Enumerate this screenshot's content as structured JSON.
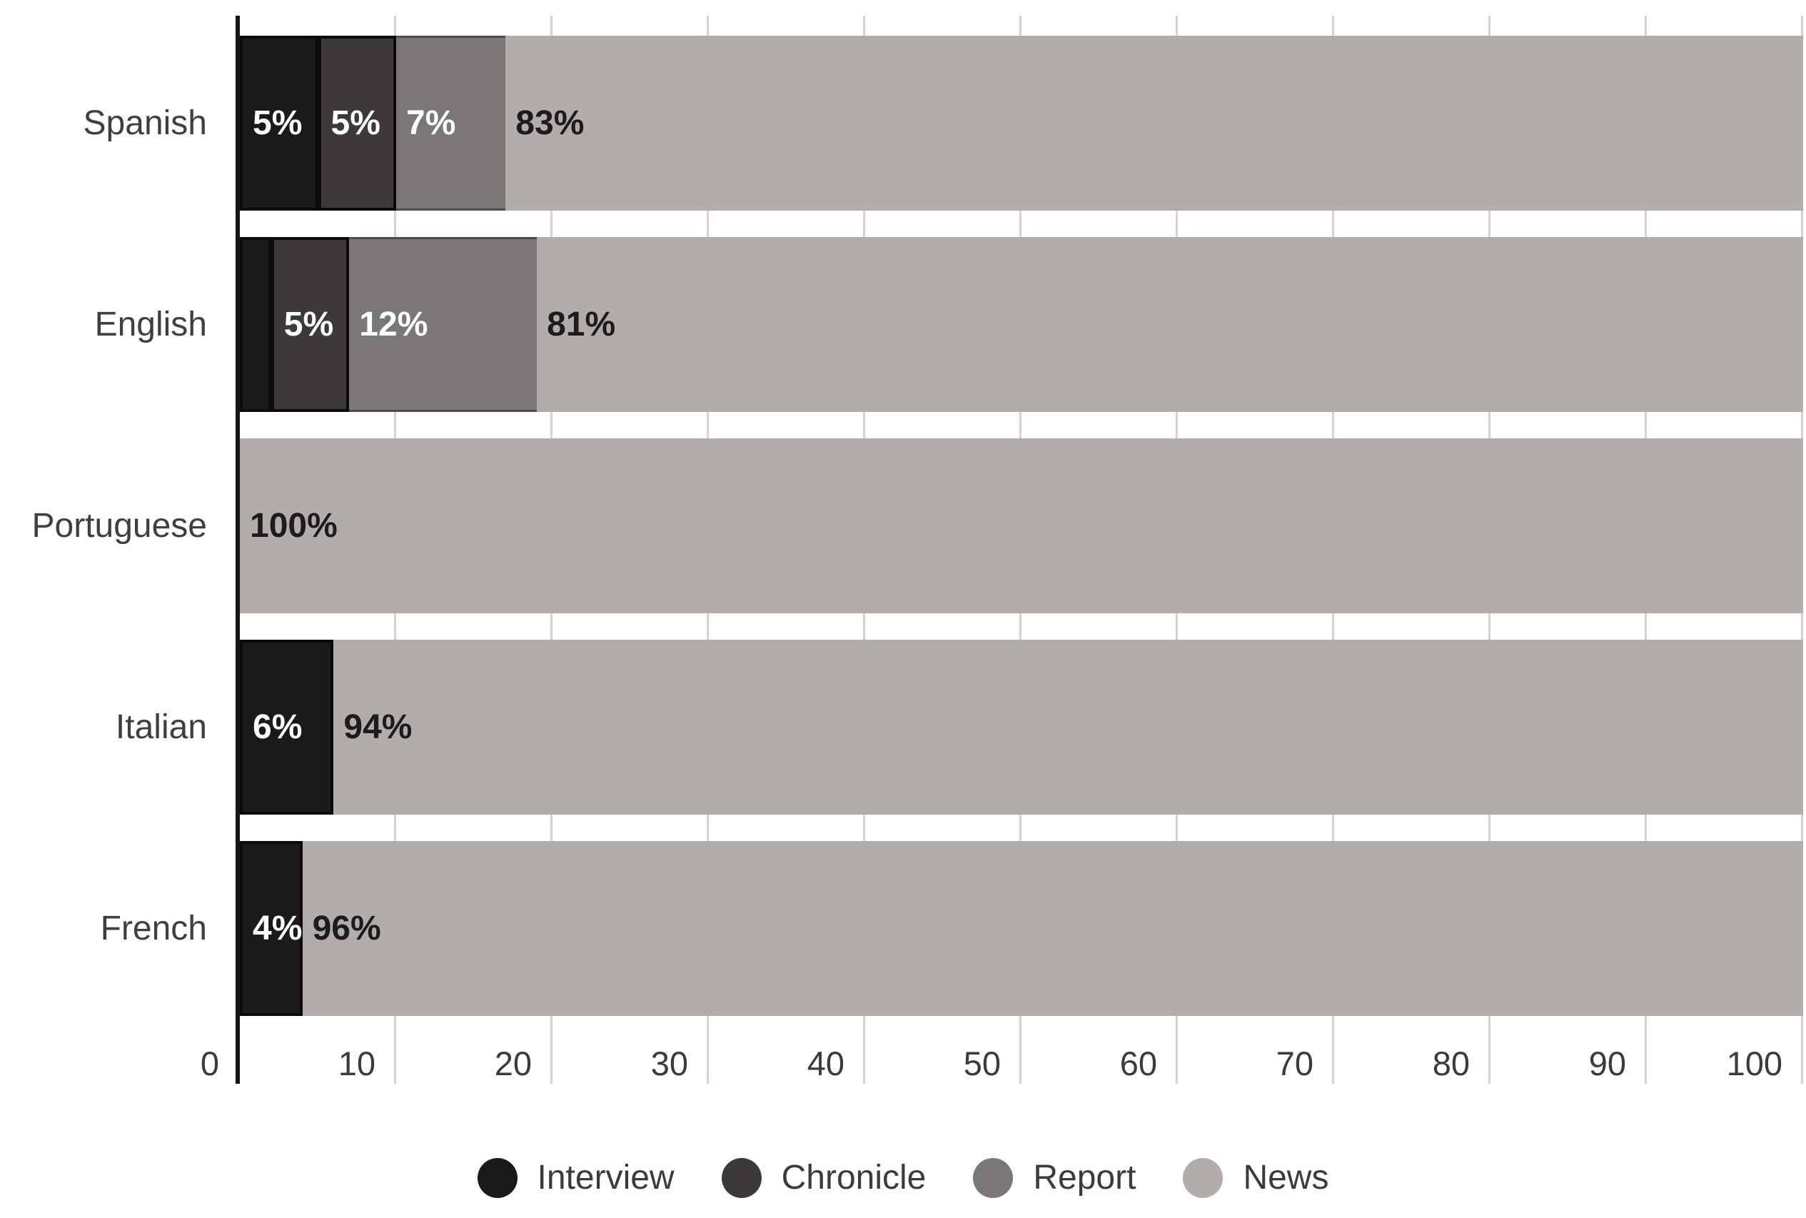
{
  "chart_data": {
    "type": "bar",
    "orientation": "horizontal",
    "stacked": true,
    "title": "",
    "categories": [
      "Spanish",
      "English",
      "Portuguese",
      "Italian",
      "French"
    ],
    "series": [
      {
        "name": "Interview",
        "color": "#1b191b",
        "label_color": "#ffffff",
        "values": [
          5,
          2,
          0,
          6,
          4
        ]
      },
      {
        "name": "Chronicle",
        "color": "#3d383b",
        "label_color": "#ffffff",
        "values": [
          5,
          5,
          0,
          0,
          0
        ]
      },
      {
        "name": "Report",
        "color": "#7b7678",
        "label_color": "#ffffff",
        "values": [
          7,
          12,
          0,
          0,
          0
        ]
      },
      {
        "name": "News",
        "color": "#b2adaa",
        "label_color": "#1c1c1c",
        "values": [
          83,
          81,
          100,
          94,
          96
        ]
      }
    ],
    "data_labels": [
      [
        "5%",
        "5%",
        "7%",
        "83%"
      ],
      [
        null,
        "5%",
        "12%",
        "81%"
      ],
      [
        null,
        null,
        null,
        "100%"
      ],
      [
        "6%",
        null,
        null,
        "94%"
      ],
      [
        "4%",
        null,
        null,
        "96%"
      ]
    ],
    "xlim": [
      0,
      100
    ],
    "x_ticks": [
      "0",
      "10",
      "20",
      "30",
      "40",
      "50",
      "60",
      "70",
      "80",
      "90",
      "100"
    ],
    "grid": true,
    "legend": {
      "position": "bottom",
      "items": [
        "Interview",
        "Chronicle",
        "Report",
        "News"
      ]
    }
  },
  "colors": {
    "background": "#ffffff",
    "axis_line": "#161416",
    "gridline": "#d4d2d2",
    "tick_label": "#3b3b3b",
    "category_label": "#3f3f3f",
    "legend_label": "#3b3b3b"
  }
}
